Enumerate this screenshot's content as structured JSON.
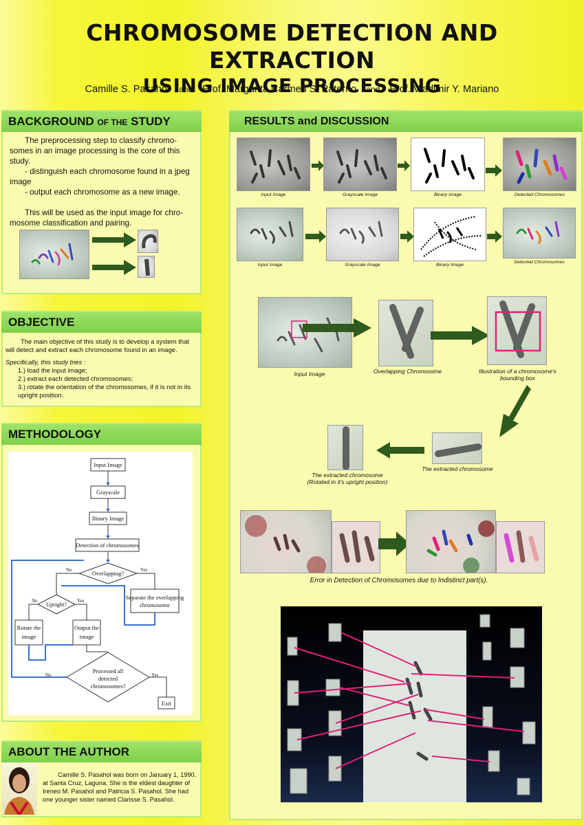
{
  "title": {
    "line1": "CHROMOSOME DETECTION AND EXTRACTION",
    "line2": "USING IMAGE PROCESSING"
  },
  "authors": {
    "a1": "Camille S. Pasahol",
    "a2": "Prof. Margarita Carmen S. Paterno",
    "a3": "Prof. Vladimir Y. Mariano",
    "and": "and"
  },
  "background": {
    "header_main": "BACKGROUND",
    "header_of": "OF THE",
    "header_study": "STUDY",
    "p1": "The preprocessing step to classify chromo-somes in an image processing is the core of this study.",
    "p2": "- distinguish each chromosome found in a jpeg image",
    "p3": "- output each chromosome as a new image.",
    "p4": "This will be used as the input image for chro-mosome classification and pairing."
  },
  "objective": {
    "header": "OBJECTIVE",
    "p1": "The main objective of this study is to develop a system that will detect and extract each chromosome found in an image.",
    "intro": "Specifically, this study tries :",
    "items": [
      "1.) load the input image;",
      "2.) extract each detected chromosomes;",
      "3.) rotate the orientation of the chromosomes, if it is not in its upright position."
    ]
  },
  "methodology": {
    "header": "METHODOLOGY",
    "flow": {
      "input": "Input Image",
      "gray": "Grayscale",
      "binary": "Binary Image",
      "detect": "Detection of chromosomes",
      "overlap": "Overlapping?",
      "separate1": "Separate the overlapping",
      "separate2": "chromosome",
      "upright": "Upright?",
      "rotate1": "Rotate the",
      "rotate2": "image",
      "output1": "Output the",
      "output2": "image",
      "processed1": "Processed all",
      "processed2": "detected",
      "processed3": "chromosomes?",
      "exit": "Exit",
      "yes": "Yes",
      "no": "No"
    }
  },
  "author": {
    "header": "ABOUT THE AUTHOR",
    "bio": "Camille S. Pasahol was born on January 1, 1990, at Santa Cruz, Laguna. She is the eldest daughter of Ireneo M. Pasahol and Patricia S. Pasahol. She had one younger sister named Clarisse S. Pasahol."
  },
  "results": {
    "header": "RESULTS and DISCUSSION",
    "row_captions": [
      "Input Image",
      "Grayscale Image",
      "Binary Image",
      "Detected Chromosomes"
    ],
    "overlap_caps": {
      "input": "Input Image",
      "overlap": "Overlapping Chromosome",
      "illus1": "Illustration of a chromosome's",
      "illus2": "bounding box",
      "extracted": "The extracted chromosome",
      "rot1": "The extracted chromosome",
      "rot2": "(Rotated in it's upright position)"
    },
    "error_caption": "Error in Detection of Chromosomes due to Indistinct part(s)."
  },
  "colors": {
    "panel_header": "#8ed85a",
    "panel_border": "#b9eb7c",
    "arrow": "#2e5a1e",
    "pink": "#e0207a"
  }
}
